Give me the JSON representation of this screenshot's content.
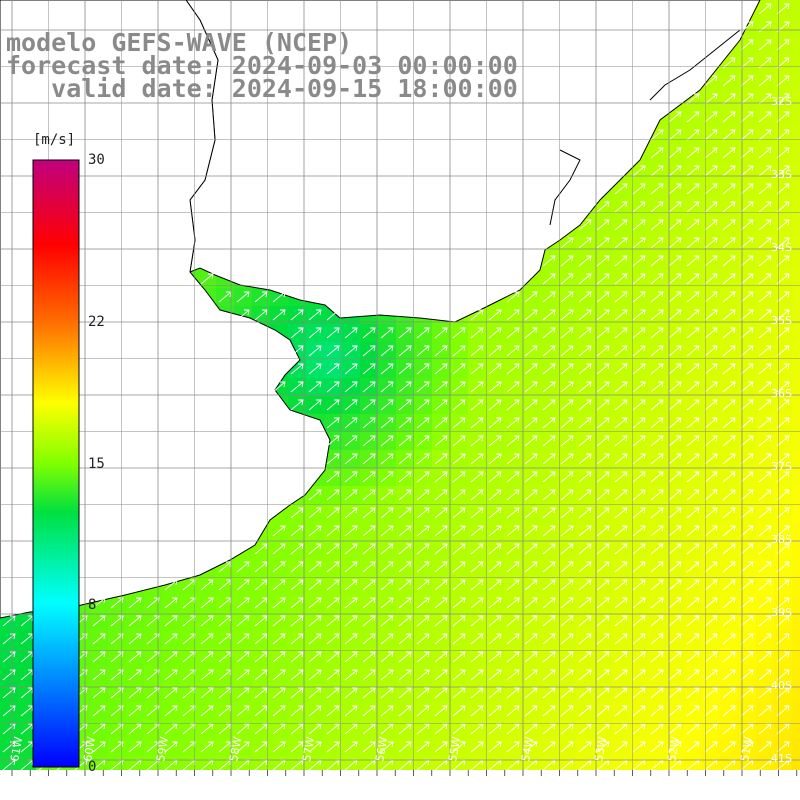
{
  "title": {
    "line1": "modelo GEFS-WAVE (NCEP)",
    "line2": "forecast date: 2024-09-03 00:00:00",
    "line3": "   valid date: 2024-09-15 18:00:00"
  },
  "colorbar": {
    "unit": "[m/s]",
    "min": 0,
    "max": 30,
    "ticks": [
      "30",
      "22",
      "15",
      "8",
      "0"
    ],
    "tick_values": [
      30,
      22,
      15,
      8,
      0
    ],
    "colors": [
      "#0000ff",
      "#00ffff",
      "#00ff00",
      "#ffff00",
      "#ff8000",
      "#ff0000",
      "#c0007f"
    ]
  },
  "map": {
    "lon_range": [
      -62,
      -50
    ],
    "lat_range": [
      -41,
      -31
    ],
    "lat_labels": [
      "32S",
      "33S",
      "34S",
      "35S",
      "36S",
      "37S",
      "38S",
      "39S",
      "40S",
      "41S"
    ],
    "lon_labels": [
      "61W",
      "60W",
      "59W",
      "58W",
      "57W",
      "56W",
      "55W",
      "54W",
      "53W",
      "52W",
      "51W"
    ],
    "land_color": "#ffffff",
    "grid_color": "#8a8a8a",
    "arrow_color": "#ffffff",
    "arrow_direction": "towards north-east"
  }
}
